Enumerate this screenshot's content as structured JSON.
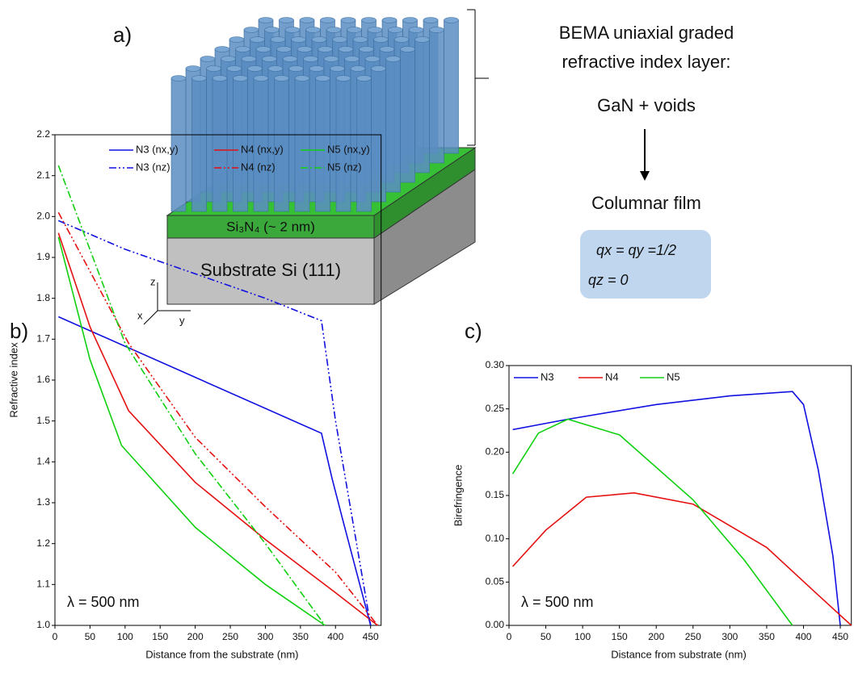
{
  "diagram": {
    "label": "a)",
    "layer": "Si₃N₄ (~ 2 nm)",
    "substrate": "Substrate Si (111)",
    "description": [
      "BEMA uniaxial graded",
      "refractive index layer:",
      "GaN + voids"
    ],
    "result": "Columnar film",
    "params": [
      "qx = qy =1/2",
      "qz = 0"
    ],
    "axes": [
      "z",
      "x",
      "y"
    ]
  },
  "chart_data": [
    {
      "type": "line",
      "label": "b)",
      "xlabel": "Distance from the substrate (nm)",
      "ylabel": "Refractive index",
      "annotation": "λ = 500 nm",
      "xlim": [
        0,
        465
      ],
      "xticks": [
        0,
        50,
        100,
        150,
        200,
        250,
        300,
        350,
        400,
        450
      ],
      "ylim": [
        1,
        2.2
      ],
      "yticks": [
        {
          "value": 1,
          "label": "1.0"
        },
        1.1,
        1.2,
        1.3,
        1.4,
        1.5,
        1.6,
        1.7,
        1.8,
        1.9,
        {
          "value": 2,
          "label": "2.0"
        },
        2.1,
        2.2
      ],
      "series": [
        {
          "name": "N3 (nx,y)",
          "color": "#1010e0",
          "linestyle": "solid",
          "x": [
            5,
            380,
            395,
            410,
            430,
            450
          ],
          "values": [
            1.755,
            1.47,
            1.36,
            1.26,
            1.13,
            1.0
          ]
        },
        {
          "name": "N4 (nx,y)",
          "color": "#e51010",
          "linestyle": "solid",
          "x": [
            5,
            50,
            105,
            200,
            300,
            400,
            460
          ],
          "values": [
            1.96,
            1.73,
            1.525,
            1.35,
            1.21,
            1.08,
            1.0
          ]
        },
        {
          "name": "N5 (nx,y)",
          "color": "#10d010",
          "linestyle": "solid",
          "x": [
            5,
            50,
            95,
            200,
            300,
            385
          ],
          "values": [
            1.95,
            1.65,
            1.44,
            1.24,
            1.1,
            1.0
          ]
        },
        {
          "name": "N3 (nz)",
          "color": "#1010e0",
          "linestyle": "dashdotdot",
          "x": [
            5,
            100,
            200,
            300,
            380,
            400,
            425,
            450
          ],
          "values": [
            1.99,
            1.92,
            1.86,
            1.8,
            1.745,
            1.5,
            1.25,
            1.0
          ]
        },
        {
          "name": "N4 (nz)",
          "color": "#e51010",
          "linestyle": "dashdotdot",
          "x": [
            5,
            105,
            200,
            300,
            400,
            460
          ],
          "values": [
            2.01,
            1.69,
            1.46,
            1.29,
            1.13,
            1.0
          ]
        },
        {
          "name": "N5 (nz)",
          "color": "#10d010",
          "linestyle": "dashdot",
          "x": [
            5,
            100,
            200,
            300,
            385
          ],
          "values": [
            2.125,
            1.69,
            1.42,
            1.2,
            1.0
          ]
        }
      ]
    },
    {
      "type": "line",
      "label": "c)",
      "xlabel": "Distance from substrate (nm)",
      "ylabel": "Birefringence",
      "annotation": "λ = 500 nm",
      "xlim": [
        0,
        465
      ],
      "xticks": [
        0,
        50,
        100,
        150,
        200,
        250,
        300,
        350,
        400,
        450
      ],
      "ylim": [
        0,
        0.3
      ],
      "yticks": [
        {
          "value": 0,
          "label": "0.00"
        },
        {
          "value": 0.05,
          "label": "0.05"
        },
        {
          "value": 0.1,
          "label": "0.10"
        },
        {
          "value": 0.15,
          "label": "0.15"
        },
        {
          "value": 0.2,
          "label": "0.20"
        },
        {
          "value": 0.25,
          "label": "0.25"
        },
        {
          "value": 0.3,
          "label": "0.30"
        }
      ],
      "series": [
        {
          "name": "N3",
          "color": "#1010e0",
          "linestyle": "solid",
          "x": [
            5,
            80,
            200,
            300,
            385,
            400,
            420,
            440,
            450
          ],
          "values": [
            0.226,
            0.238,
            0.255,
            0.265,
            0.27,
            0.255,
            0.18,
            0.08,
            0.0
          ]
        },
        {
          "name": "N4",
          "color": "#e51010",
          "linestyle": "solid",
          "x": [
            5,
            50,
            105,
            170,
            250,
            350,
            420,
            465
          ],
          "values": [
            0.068,
            0.11,
            0.148,
            0.153,
            0.14,
            0.09,
            0.035,
            0.0
          ]
        },
        {
          "name": "N5",
          "color": "#10d010",
          "linestyle": "solid",
          "x": [
            5,
            40,
            80,
            150,
            250,
            320,
            385
          ],
          "values": [
            0.175,
            0.222,
            0.238,
            0.22,
            0.145,
            0.075,
            0.0
          ]
        }
      ]
    }
  ]
}
